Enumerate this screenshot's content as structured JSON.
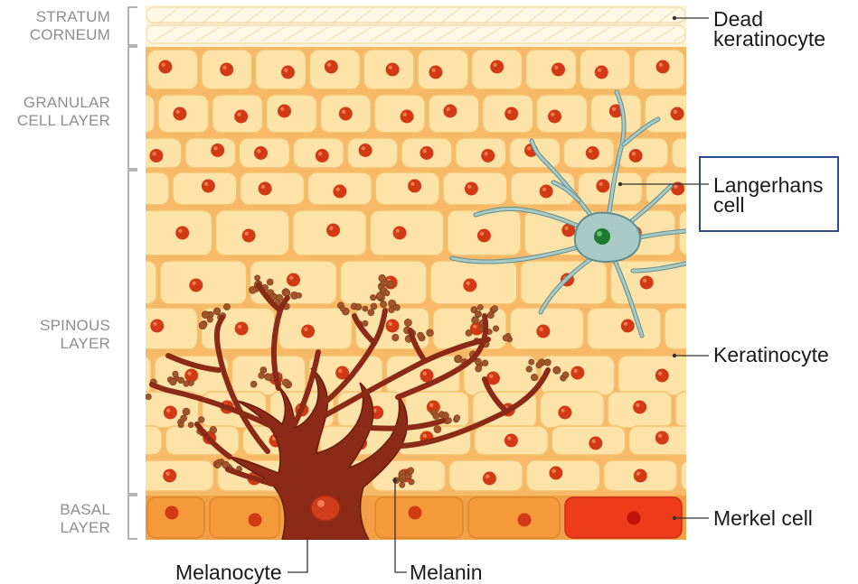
{
  "layers": {
    "stratum_corneum": [
      "STRATUM",
      "CORNEUM"
    ],
    "granular": [
      "GRANULAR",
      "CELL LAYER"
    ],
    "spinous": [
      "SPINOUS",
      "LAYER"
    ],
    "basal": [
      "BASAL",
      "LAYER"
    ]
  },
  "callouts": {
    "dead_keratinocyte": [
      "Dead",
      "keratinocyte"
    ],
    "langerhans": [
      "Langerhans",
      "cell"
    ],
    "keratinocyte": "Keratinocyte",
    "merkel": "Merkel cell",
    "melanocyte": "Melanocyte",
    "melanin": "Melanin"
  },
  "colors": {
    "cell_fill": "#fde3a8",
    "cell_stroke": "#f3c06c",
    "matrix": "#f7b868",
    "nucleus": "#d23a16",
    "basal_cell": "#f49a3a",
    "merkel_cell": "#ec3c1a",
    "melanocyte": "#8b2a16",
    "melanin_granule": "#a0552a",
    "langerhans": "#a9c9c4",
    "langerhans_stroke": "#5f8f90",
    "langerhans_nucleus": "#1e7a2e",
    "bracket": "#9a9a9a",
    "leader": "#333333",
    "box": "#2f4d8c"
  }
}
